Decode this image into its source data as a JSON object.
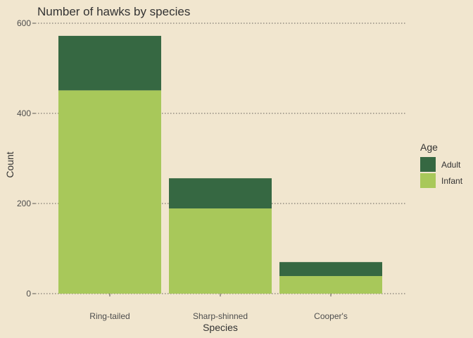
{
  "chart_data": {
    "type": "bar",
    "stacked": true,
    "title": "Number of hawks by species",
    "xlabel": "Species",
    "ylabel": "Count",
    "categories": [
      "Ring-tailed",
      "Sharp-shinned",
      "Cooper's"
    ],
    "series": [
      {
        "name": "Infant",
        "values": [
          451,
          189,
          39
        ],
        "color": "#A8C85A"
      },
      {
        "name": "Adult",
        "values": [
          121,
          67,
          31
        ],
        "color": "#366842"
      }
    ],
    "ylim": [
      0,
      600
    ],
    "yticks": [
      0,
      200,
      400,
      600
    ],
    "grid": "horizontal dotted",
    "legend": {
      "title": "Age",
      "position": "right",
      "items": [
        "Adult",
        "Infant"
      ]
    },
    "background": "#F1E6CF"
  }
}
